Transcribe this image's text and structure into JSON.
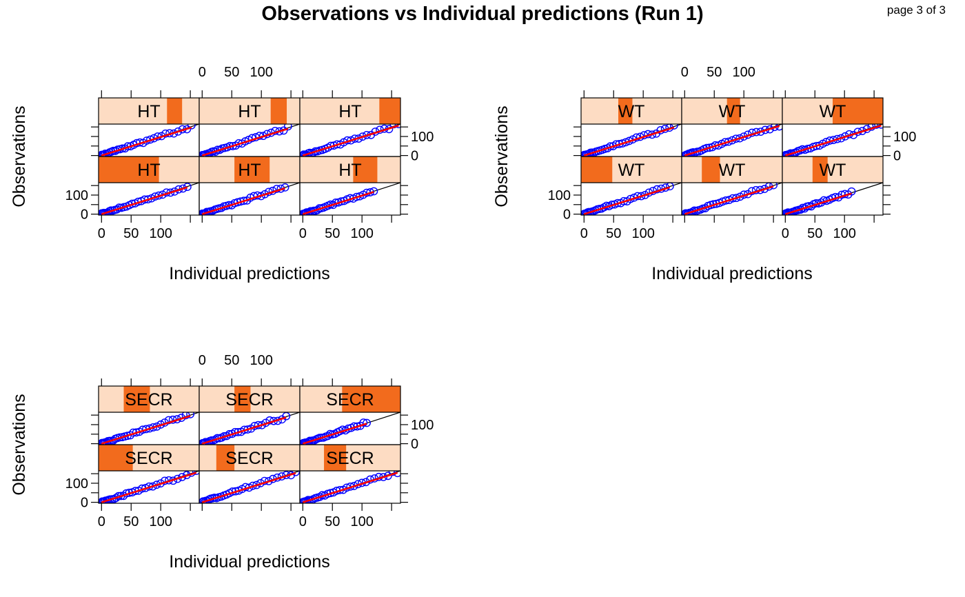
{
  "page": {
    "title": "Observations vs Individual predictions (Run 1)",
    "page_label": "page 3 of 3"
  },
  "colors": {
    "strip_bg": "#fddcc3",
    "strip_fill": "#f26b1d",
    "points": "#0000ff",
    "smooth": "#ff0000",
    "identity": "#000000"
  },
  "chart_data": [
    {
      "type": "scatter",
      "conditioning_variable": "HT",
      "xlabel": "Individual predictions",
      "ylabel": "Observations",
      "x_ticks": [
        "0",
        "50",
        "100"
      ],
      "y_ticks": [
        "0",
        "100"
      ],
      "xlim": [
        -5,
        165
      ],
      "ylim": [
        -5,
        165
      ],
      "identity_line": true,
      "smooth_line": true,
      "panels": [
        {
          "label": "HT",
          "range_frac": [
            0.0,
            0.6
          ],
          "xmax": 145
        },
        {
          "label": "HT",
          "range_frac": [
            0.35,
            0.7
          ],
          "xmax": 140
        },
        {
          "label": "HT",
          "range_frac": [
            0.53,
            0.77
          ],
          "xmax": 120
        },
        {
          "label": "HT",
          "range_frac": [
            0.68,
            0.83
          ],
          "xmax": 152
        },
        {
          "label": "HT",
          "range_frac": [
            0.71,
            0.87
          ],
          "xmax": 145
        },
        {
          "label": "HT",
          "range_frac": [
            0.79,
            1.0
          ],
          "xmax": 162
        }
      ]
    },
    {
      "type": "scatter",
      "conditioning_variable": "WT",
      "xlabel": "Individual predictions",
      "ylabel": "Observations",
      "x_ticks": [
        "0",
        "50",
        "100"
      ],
      "y_ticks": [
        "0",
        "100"
      ],
      "xlim": [
        -5,
        165
      ],
      "ylim": [
        -5,
        165
      ],
      "identity_line": true,
      "smooth_line": true,
      "panels": [
        {
          "label": "WT",
          "range_frac": [
            0.0,
            0.31
          ],
          "xmax": 145
        },
        {
          "label": "WT",
          "range_frac": [
            0.2,
            0.38
          ],
          "xmax": 150
        },
        {
          "label": "WT",
          "range_frac": [
            0.3,
            0.45
          ],
          "xmax": 112
        },
        {
          "label": "WT",
          "range_frac": [
            0.37,
            0.51
          ],
          "xmax": 152
        },
        {
          "label": "WT",
          "range_frac": [
            0.45,
            0.58
          ],
          "xmax": 160
        },
        {
          "label": "WT",
          "range_frac": [
            0.5,
            1.0
          ],
          "xmax": 162
        }
      ]
    },
    {
      "type": "scatter",
      "conditioning_variable": "SECR",
      "xlabel": "Individual predictions",
      "ylabel": "Observations",
      "x_ticks": [
        "0",
        "50",
        "100"
      ],
      "y_ticks": [
        "0",
        "100"
      ],
      "xlim": [
        -5,
        165
      ],
      "ylim": [
        -5,
        165
      ],
      "identity_line": true,
      "smooth_line": true,
      "panels": [
        {
          "label": "SECR",
          "range_frac": [
            0.0,
            0.34
          ],
          "xmax": 160
        },
        {
          "label": "SECR",
          "range_frac": [
            0.17,
            0.35
          ],
          "xmax": 158
        },
        {
          "label": "SECR",
          "range_frac": [
            0.24,
            0.46
          ],
          "xmax": 160
        },
        {
          "label": "SECR",
          "range_frac": [
            0.25,
            0.51
          ],
          "xmax": 150
        },
        {
          "label": "SECR",
          "range_frac": [
            0.35,
            0.51
          ],
          "xmax": 142
        },
        {
          "label": "SECR",
          "range_frac": [
            0.42,
            1.0
          ],
          "xmax": 108
        }
      ]
    }
  ]
}
